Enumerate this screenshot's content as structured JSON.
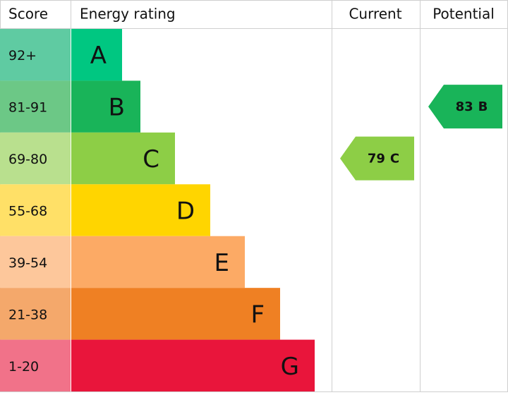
{
  "header": {
    "score": "Score",
    "rating": "Energy rating",
    "current": "Current",
    "potential": "Potential"
  },
  "bands": [
    {
      "score": "92+",
      "letter": "A",
      "color": "#00c781",
      "score_color": "#5fcba2"
    },
    {
      "score": "81-91",
      "letter": "B",
      "color": "#19b459",
      "score_color": "#6cc886"
    },
    {
      "score": "69-80",
      "letter": "C",
      "color": "#8dce46",
      "score_color": "#b9e08e"
    },
    {
      "score": "55-68",
      "letter": "D",
      "color": "#ffd500",
      "score_color": "#ffe067"
    },
    {
      "score": "39-54",
      "letter": "E",
      "color": "#fcaa65",
      "score_color": "#fdc79b"
    },
    {
      "score": "21-38",
      "letter": "F",
      "color": "#ef8023",
      "score_color": "#f4a86b"
    },
    {
      "score": "1-20",
      "letter": "G",
      "color": "#e9153b",
      "score_color": "#f17289"
    }
  ],
  "current": {
    "value": 79,
    "letter": "C"
  },
  "potential": {
    "value": 83,
    "letter": "B"
  }
}
